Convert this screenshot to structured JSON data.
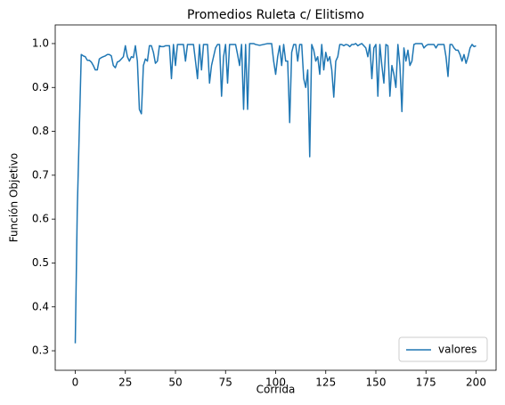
{
  "chart_data": {
    "type": "line",
    "title": "Promedios Ruleta c/ Elitismo",
    "xlabel": "Corrida",
    "ylabel": "Función Objetivo",
    "x": [
      0,
      1,
      2,
      3,
      4,
      5,
      6,
      7,
      8,
      9,
      10,
      11,
      12,
      13,
      14,
      15,
      16,
      17,
      18,
      19,
      20,
      21,
      22,
      23,
      24,
      25,
      26,
      27,
      28,
      29,
      30,
      31,
      32,
      33,
      34,
      35,
      36,
      37,
      38,
      39,
      40,
      41,
      42,
      43,
      44,
      45,
      46,
      47,
      48,
      49,
      50,
      51,
      52,
      53,
      54,
      55,
      56,
      57,
      58,
      59,
      60,
      61,
      62,
      63,
      64,
      65,
      66,
      67,
      68,
      69,
      70,
      71,
      72,
      73,
      74,
      75,
      76,
      77,
      78,
      79,
      80,
      81,
      82,
      83,
      84,
      85,
      86,
      87,
      88,
      89,
      90,
      91,
      92,
      93,
      94,
      95,
      96,
      97,
      98,
      99,
      100,
      101,
      102,
      103,
      104,
      105,
      106,
      107,
      108,
      109,
      110,
      111,
      112,
      113,
      114,
      115,
      116,
      117,
      118,
      119,
      120,
      121,
      122,
      123,
      124,
      125,
      126,
      127,
      128,
      129,
      130,
      131,
      132,
      133,
      134,
      135,
      136,
      137,
      138,
      139,
      140,
      141,
      142,
      143,
      144,
      145,
      146,
      147,
      148,
      149,
      150,
      151,
      152,
      153,
      154,
      155,
      156,
      157,
      158,
      159,
      160,
      161,
      162,
      163,
      164,
      165,
      166,
      167,
      168,
      169,
      170,
      171,
      172,
      173,
      174,
      175,
      176,
      177,
      178,
      179,
      180,
      181,
      182,
      183,
      184,
      185,
      186,
      187,
      188,
      189,
      190,
      191,
      192,
      193,
      194,
      195,
      196,
      197,
      198,
      199,
      200
    ],
    "series": [
      {
        "name": "valores",
        "color": "#1f77b4",
        "values": [
          0.317,
          0.62,
          0.8,
          0.975,
          0.972,
          0.97,
          0.962,
          0.962,
          0.958,
          0.95,
          0.94,
          0.94,
          0.965,
          0.968,
          0.97,
          0.972,
          0.975,
          0.975,
          0.972,
          0.95,
          0.945,
          0.958,
          0.96,
          0.965,
          0.97,
          0.995,
          0.97,
          0.96,
          0.97,
          0.968,
          0.995,
          0.96,
          0.85,
          0.84,
          0.95,
          0.965,
          0.96,
          0.995,
          0.995,
          0.98,
          0.955,
          0.96,
          0.995,
          0.993,
          0.993,
          0.995,
          0.995,
          0.995,
          0.92,
          0.998,
          0.95,
          0.998,
          0.998,
          0.998,
          0.998,
          0.96,
          0.998,
          0.998,
          0.998,
          0.998,
          0.96,
          0.92,
          0.998,
          0.94,
          0.998,
          0.998,
          0.998,
          0.91,
          0.95,
          0.97,
          0.99,
          0.998,
          0.998,
          0.88,
          0.97,
          0.998,
          0.91,
          0.998,
          0.998,
          0.998,
          0.998,
          0.975,
          0.95,
          0.998,
          0.85,
          0.998,
          0.85,
          1.0,
          1.0,
          1.0,
          0.998,
          0.997,
          0.996,
          0.997,
          0.998,
          0.999,
          1.0,
          1.0,
          1.0,
          0.96,
          0.93,
          0.97,
          0.995,
          0.95,
          0.998,
          0.96,
          0.96,
          0.82,
          0.98,
          0.998,
          0.998,
          0.96,
          0.998,
          0.998,
          0.92,
          0.9,
          0.94,
          0.742,
          0.998,
          0.985,
          0.96,
          0.97,
          0.93,
          0.998,
          0.94,
          0.98,
          0.96,
          0.97,
          0.94,
          0.878,
          0.96,
          0.97,
          0.998,
          0.998,
          0.995,
          0.998,
          0.997,
          0.993,
          0.998,
          0.998,
          1.0,
          0.995,
          0.998,
          1.0,
          0.995,
          0.99,
          0.97,
          0.998,
          0.92,
          0.99,
          0.998,
          0.88,
          0.998,
          0.95,
          0.91,
          0.998,
          0.995,
          0.88,
          0.95,
          0.93,
          0.9,
          0.998,
          0.95,
          0.845,
          0.99,
          0.96,
          0.985,
          0.95,
          0.96,
          0.998,
          1.0,
          1.0,
          1.0,
          1.0,
          0.99,
          0.995,
          0.998,
          0.998,
          0.998,
          0.998,
          0.99,
          0.998,
          0.998,
          0.998,
          0.998,
          0.97,
          0.925,
          0.998,
          0.998,
          0.99,
          0.985,
          0.985,
          0.975,
          0.96,
          0.975,
          0.955,
          0.97,
          0.99,
          0.998,
          0.993,
          0.995
        ]
      }
    ],
    "xlim": [
      -10,
      210
    ],
    "xticks": [
      0,
      25,
      50,
      75,
      100,
      125,
      150,
      175,
      200
    ],
    "ylim": [
      0.2555,
      1.0425
    ],
    "yticks": [
      0.3,
      0.4,
      0.5,
      0.6,
      0.7,
      0.8,
      0.9,
      {
        "value": 1,
        "label": "1.0"
      }
    ],
    "grid": false,
    "legend": "lower right"
  }
}
